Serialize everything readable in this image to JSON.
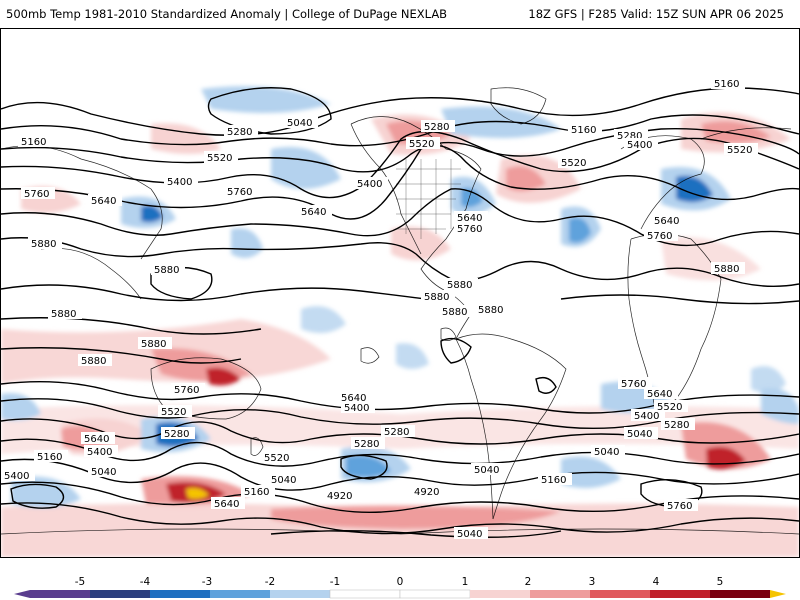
{
  "header": {
    "title_left": "500mb Temp 1981-2010 Standardized Anomaly | College of DuPage NEXLAB",
    "title_right": "18Z GFS | F285 Valid: 15Z SUN APR 06 2025"
  },
  "colors": {
    "neg5": "#5a3d8e",
    "neg4": "#2a3f7e",
    "neg3": "#1e6fc0",
    "neg2": "#5fa2dc",
    "neg1": "#b4d2ee",
    "zero": "#ffffff",
    "pos1": "#f7d3d2",
    "pos2": "#ee9c9c",
    "pos3": "#e05a5e",
    "pos4": "#c0202a",
    "pos5": "#7a0010",
    "pos6": "#f5c400"
  },
  "colorbar": {
    "labels": [
      "-5",
      "-4",
      "-3",
      "-2",
      "-1",
      "0",
      "1",
      "2",
      "3",
      "4",
      "5"
    ]
  },
  "contour_labels": [
    {
      "text": "5160",
      "id": "c1"
    },
    {
      "text": "5280",
      "id": "c2"
    },
    {
      "text": "5040",
      "id": "c3"
    },
    {
      "text": "5160",
      "id": "c4"
    },
    {
      "text": "5520",
      "id": "c5"
    },
    {
      "text": "5400",
      "id": "c6"
    },
    {
      "text": "5760",
      "id": "c7"
    },
    {
      "text": "5640",
      "id": "c8"
    },
    {
      "text": "5760",
      "id": "c9"
    },
    {
      "text": "5880",
      "id": "c10"
    },
    {
      "text": "5880",
      "id": "c11"
    },
    {
      "text": "5880",
      "id": "c12"
    },
    {
      "text": "5880",
      "id": "c13"
    },
    {
      "text": "5880",
      "id": "c14"
    },
    {
      "text": "5280",
      "id": "c15"
    },
    {
      "text": "5520",
      "id": "c16"
    },
    {
      "text": "5400",
      "id": "c17"
    },
    {
      "text": "5640",
      "id": "c18"
    },
    {
      "text": "5640",
      "id": "c19"
    },
    {
      "text": "5760",
      "id": "c20"
    },
    {
      "text": "5880",
      "id": "c21"
    },
    {
      "text": "5880",
      "id": "c22"
    },
    {
      "text": "5880",
      "id": "c23"
    },
    {
      "text": "5880",
      "id": "c24"
    },
    {
      "text": "5160",
      "id": "c25"
    },
    {
      "text": "5280",
      "id": "c26"
    },
    {
      "text": "5400",
      "id": "c27"
    },
    {
      "text": "5520",
      "id": "c28"
    },
    {
      "text": "5520",
      "id": "c29"
    },
    {
      "text": "5640",
      "id": "c30"
    },
    {
      "text": "5760",
      "id": "c31"
    },
    {
      "text": "5880",
      "id": "c32"
    },
    {
      "text": "5760",
      "id": "c33"
    },
    {
      "text": "5640",
      "id": "c34"
    },
    {
      "text": "5400",
      "id": "c35"
    },
    {
      "text": "5280",
      "id": "c36"
    },
    {
      "text": "5520",
      "id": "c37"
    },
    {
      "text": "5640",
      "id": "c38"
    },
    {
      "text": "5400",
      "id": "c39"
    },
    {
      "text": "5160",
      "id": "c40"
    },
    {
      "text": "5040",
      "id": "c41"
    },
    {
      "text": "5760",
      "id": "c42"
    },
    {
      "text": "5640",
      "id": "c43"
    },
    {
      "text": "5400",
      "id": "c44"
    },
    {
      "text": "5280",
      "id": "c45"
    },
    {
      "text": "5520",
      "id": "c46"
    },
    {
      "text": "5280",
      "id": "c47"
    },
    {
      "text": "5040",
      "id": "c48"
    },
    {
      "text": "5160",
      "id": "c49"
    },
    {
      "text": "5040",
      "id": "c50"
    },
    {
      "text": "4920",
      "id": "c51"
    },
    {
      "text": "5040",
      "id": "c52"
    },
    {
      "text": "5160",
      "id": "c53"
    },
    {
      "text": "5760",
      "id": "c54"
    },
    {
      "text": "5640",
      "id": "c55"
    },
    {
      "text": "5520",
      "id": "c56"
    },
    {
      "text": "5400",
      "id": "c57"
    },
    {
      "text": "5280",
      "id": "c58"
    },
    {
      "text": "5040",
      "id": "c59"
    },
    {
      "text": "4920",
      "id": "c60"
    },
    {
      "text": "5040",
      "id": "c61"
    }
  ]
}
